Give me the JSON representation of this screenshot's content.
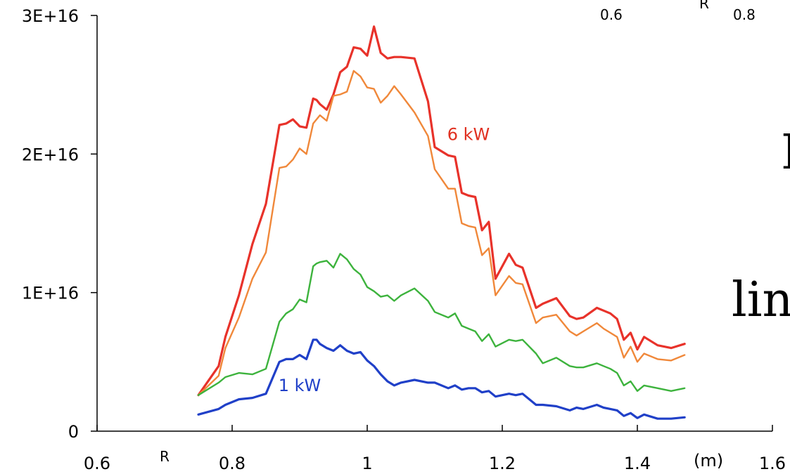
{
  "chart_data": {
    "type": "line",
    "xlabel": "R",
    "xunit": "(m)",
    "xlim": [
      0.6,
      1.6
    ],
    "ylim": [
      0,
      3e+16
    ],
    "grid": false,
    "x_ticks": [
      0.6,
      0.8,
      1,
      1.2,
      1.4,
      1.6
    ],
    "x_tick_labels": [
      "0.6",
      "0.8",
      "1",
      "1.2",
      "1.4",
      "1.6"
    ],
    "y_ticks": [
      0,
      1e+16,
      2e+16,
      3e+16
    ],
    "y_tick_labels": [
      "0",
      "1E+16",
      "2E+16",
      "3E+16"
    ],
    "x": [
      0.75,
      0.78,
      0.79,
      0.81,
      0.83,
      0.85,
      0.87,
      0.88,
      0.89,
      0.9,
      0.91,
      0.92,
      0.925,
      0.93,
      0.94,
      0.95,
      0.96,
      0.97,
      0.98,
      0.99,
      1.0,
      1.01,
      1.02,
      1.03,
      1.04,
      1.05,
      1.07,
      1.09,
      1.1,
      1.12,
      1.13,
      1.14,
      1.15,
      1.16,
      1.17,
      1.18,
      1.19,
      1.21,
      1.22,
      1.23,
      1.25,
      1.26,
      1.28,
      1.3,
      1.31,
      1.32,
      1.34,
      1.35,
      1.36,
      1.37,
      1.38,
      1.39,
      1.4,
      1.41,
      1.43,
      1.45,
      1.47
    ],
    "series": [
      {
        "name": "6 kW",
        "color": "#e8322a",
        "stroke_width": 3.2,
        "values": [
          2600000000000000.0,
          4700000000000000.0,
          6800000000000000.0,
          9800000000000000.0,
          1.35e+16,
          1.64e+16,
          2.21e+16,
          2.22e+16,
          2.25e+16,
          2.2e+16,
          2.19e+16,
          2.4e+16,
          2.39e+16,
          2.36e+16,
          2.32e+16,
          2.43e+16,
          2.59e+16,
          2.63e+16,
          2.77e+16,
          2.76e+16,
          2.71e+16,
          2.92e+16,
          2.73e+16,
          2.69e+16,
          2.7e+16,
          2.7e+16,
          2.69e+16,
          2.38e+16,
          2.05e+16,
          1.99e+16,
          1.98e+16,
          1.72e+16,
          1.7e+16,
          1.69e+16,
          1.45e+16,
          1.51e+16,
          1.1e+16,
          1.28e+16,
          1.2e+16,
          1.18e+16,
          8900000000000000.0,
          9200000000000000.0,
          9600000000000000.0,
          8300000000000000.0,
          8100000000000000.0,
          8200000000000000.0,
          8900000000000000.0,
          8700000000000000.0,
          8500000000000000.0,
          8100000000000000.0,
          6600000000000000.0,
          7100000000000000.0,
          5900000000000000.0,
          6800000000000000.0,
          6200000000000000.0,
          6000000000000000.0,
          6300000000000000.0
        ]
      },
      {
        "name": "",
        "color": "#f0883a",
        "stroke_width": 2.4,
        "values": [
          2600000000000000.0,
          4000000000000000.0,
          6000000000000000.0,
          8200000000000000.0,
          1.1e+16,
          1.29e+16,
          1.9e+16,
          1.91e+16,
          1.96e+16,
          2.04e+16,
          2e+16,
          2.22e+16,
          2.25e+16,
          2.28e+16,
          2.24e+16,
          2.42e+16,
          2.43e+16,
          2.45e+16,
          2.6e+16,
          2.56e+16,
          2.48e+16,
          2.47e+16,
          2.37e+16,
          2.42e+16,
          2.49e+16,
          2.43e+16,
          2.3e+16,
          2.13e+16,
          1.89e+16,
          1.75e+16,
          1.75e+16,
          1.5e+16,
          1.48e+16,
          1.47e+16,
          1.27e+16,
          1.32e+16,
          9800000000000000.0,
          1.12e+16,
          1.07e+16,
          1.06e+16,
          7800000000000000.0,
          8200000000000000.0,
          8400000000000000.0,
          7200000000000000.0,
          6900000000000000.0,
          7200000000000000.0,
          7800000000000000.0,
          7400000000000000.0,
          7100000000000000.0,
          6800000000000000.0,
          5300000000000000.0,
          6100000000000000.0,
          5000000000000000.0,
          5600000000000000.0,
          5200000000000000.0,
          5100000000000000.0,
          5500000000000000.0
        ]
      },
      {
        "name": "",
        "color": "#3db33d",
        "stroke_width": 2.4,
        "values": [
          2600000000000000.0,
          3500000000000000.0,
          3900000000000000.0,
          4200000000000000.0,
          4100000000000000.0,
          4500000000000000.0,
          7900000000000000.0,
          8500000000000000.0,
          8800000000000000.0,
          9500000000000000.0,
          9300000000000000.0,
          1.19e+16,
          1.21e+16,
          1.22e+16,
          1.23e+16,
          1.18e+16,
          1.28e+16,
          1.24e+16,
          1.17e+16,
          1.13e+16,
          1.04e+16,
          1.01e+16,
          9700000000000000.0,
          9800000000000000.0,
          9400000000000000.0,
          9800000000000000.0,
          1.03e+16,
          9400000000000000.0,
          8600000000000000.0,
          8200000000000000.0,
          8500000000000000.0,
          7600000000000000.0,
          7400000000000000.0,
          7200000000000000.0,
          6500000000000000.0,
          7000000000000000.0,
          6100000000000000.0,
          6600000000000000.0,
          6500000000000000.0,
          6600000000000000.0,
          5600000000000000.0,
          4900000000000000.0,
          5300000000000000.0,
          4700000000000000.0,
          4600000000000000.0,
          4600000000000000.0,
          4900000000000000.0,
          4700000000000000.0,
          4500000000000000.0,
          4200000000000000.0,
          3300000000000000.0,
          3600000000000000.0,
          2900000000000000.0,
          3300000000000000.0,
          3100000000000000.0,
          2900000000000000.0,
          3100000000000000.0
        ]
      },
      {
        "name": "1 kW",
        "color": "#2040c8",
        "stroke_width": 3.2,
        "values": [
          1200000000000000.0,
          1600000000000000.0,
          1900000000000000.0,
          2300000000000000.0,
          2400000000000000.0,
          2700000000000000.0,
          5000000000000000.0,
          5200000000000000.0,
          5200000000000000.0,
          5500000000000000.0,
          5200000000000000.0,
          6600000000000000.0,
          6600000000000000.0,
          6300000000000000.0,
          6000000000000000.0,
          5800000000000000.0,
          6200000000000000.0,
          5800000000000000.0,
          5600000000000000.0,
          5700000000000000.0,
          5100000000000000.0,
          4700000000000000.0,
          4100000000000000.0,
          3600000000000000.0,
          3300000000000000.0,
          3500000000000000.0,
          3700000000000000.0,
          3500000000000000.0,
          3500000000000000.0,
          3100000000000000.0,
          3300000000000000.0,
          3000000000000000.0,
          3100000000000000.0,
          3100000000000000.0,
          2800000000000000.0,
          2900000000000000.0,
          2500000000000000.0,
          2700000000000000.0,
          2600000000000000.0,
          2700000000000000.0,
          1900000000000000.0,
          1900000000000000.0,
          1800000000000000.0,
          1500000000000000.0,
          1700000000000000.0,
          1600000000000000.0,
          1900000000000000.0,
          1700000000000000.0,
          1600000000000000.0,
          1500000000000000.0,
          1100000000000000.0,
          1300000000000000.0,
          950000000000000.0,
          1200000000000000.0,
          900000000000000.0,
          900000000000000.0,
          1000000000000000.0
        ]
      }
    ],
    "annotations": [
      {
        "text": "6 kW",
        "x": 1.15,
        "y": 2.1e+16,
        "color": "#e03020"
      },
      {
        "text": "1 kW",
        "x": 0.9,
        "y": 2900000000000000.0,
        "color": "#2040c8"
      }
    ],
    "inset_fragment": {
      "r_label": "R",
      "ticks": [
        "0.6",
        "0.8"
      ]
    },
    "cropped_text": [
      "I",
      "lin"
    ]
  }
}
